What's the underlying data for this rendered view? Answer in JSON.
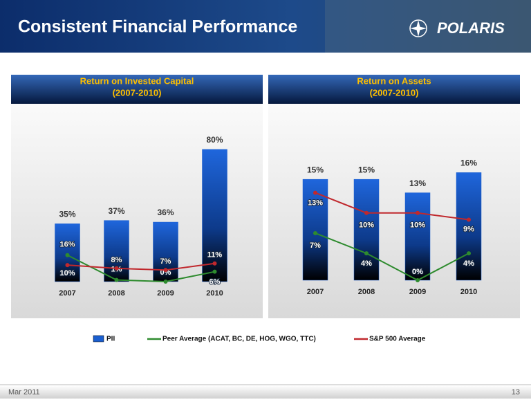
{
  "slide": {
    "title": "Consistent Financial Performance",
    "logo": "POLARIS",
    "date": "Mar 2011",
    "page": "13"
  },
  "chart_data": [
    {
      "type": "bar-line",
      "title": "Return on Invested Capital",
      "subtitle": "(2007-2010)",
      "categories": [
        "2007",
        "2008",
        "2009",
        "2010"
      ],
      "ylim": [
        0,
        85
      ],
      "series": [
        {
          "name": "PII",
          "kind": "bar",
          "color": "#1a5fd0",
          "values": [
            35,
            37,
            36,
            80
          ],
          "value_labels": [
            "35%",
            "37%",
            "36%",
            "80%"
          ]
        },
        {
          "name": "Peer Average (ACAT, BC, DE, HOG, WGO, TTC)",
          "kind": "line",
          "color": "#2e8b2e",
          "values": [
            16,
            1,
            0,
            6
          ],
          "value_labels": [
            "16%",
            "1%",
            "0%",
            "6%"
          ]
        },
        {
          "name": "S&P 500 Average",
          "kind": "line",
          "color": "#c0282d",
          "values": [
            10,
            8,
            7,
            11
          ],
          "value_labels": [
            "10%",
            "8%",
            "7%",
            "11%"
          ]
        }
      ]
    },
    {
      "type": "bar-line",
      "title": "Return on Assets",
      "subtitle": "(2007-2010)",
      "categories": [
        "2007",
        "2008",
        "2009",
        "2010"
      ],
      "ylim": [
        0,
        18
      ],
      "series": [
        {
          "name": "PII",
          "kind": "bar",
          "color": "#1a5fd0",
          "values": [
            15,
            15,
            13,
            16
          ],
          "value_labels": [
            "15%",
            "15%",
            "13%",
            "16%"
          ]
        },
        {
          "name": "Peer Average (ACAT, BC, DE, HOG, WGO, TTC)",
          "kind": "line",
          "color": "#2e8b2e",
          "values": [
            7,
            4,
            0,
            4
          ],
          "value_labels": [
            "7%",
            "4%",
            "0%",
            "4%"
          ]
        },
        {
          "name": "S&P 500 Average",
          "kind": "line",
          "color": "#c0282d",
          "values": [
            13,
            10,
            10,
            9
          ],
          "value_labels": [
            "13%",
            "10%",
            "10%",
            "9%"
          ]
        }
      ]
    }
  ]
}
